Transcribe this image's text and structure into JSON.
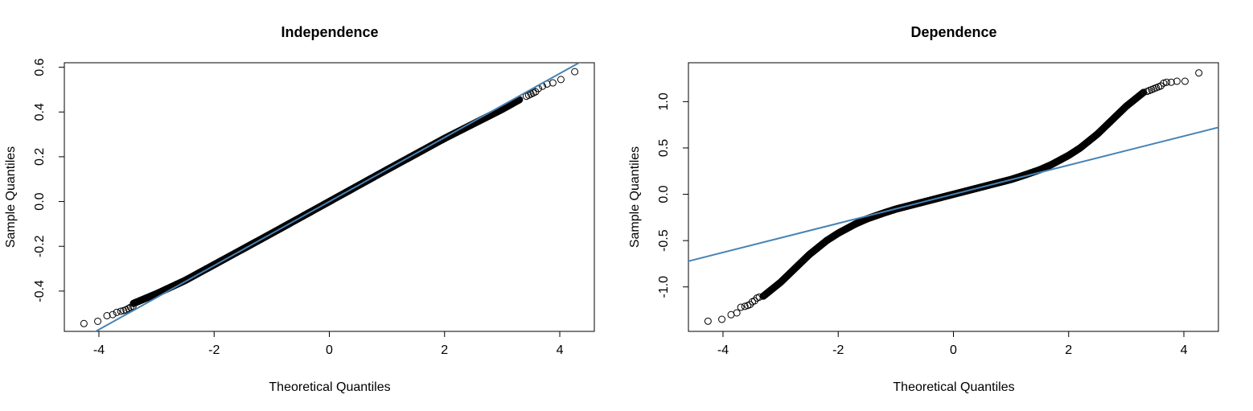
{
  "chart_data": [
    {
      "type": "scatter",
      "title": "Independence",
      "xlabel": "Theoretical Quantiles",
      "ylabel": "Sample Quantiles",
      "xlim": [
        -4.6,
        4.6
      ],
      "ylim": [
        -0.58,
        0.62
      ],
      "xticks": [
        -4,
        -2,
        0,
        2,
        4
      ],
      "yticks": [
        -0.4,
        -0.2,
        0.0,
        0.2,
        0.4,
        0.6
      ],
      "ytick_labels": [
        "-0.4",
        "-0.2",
        "0.0",
        "0.2",
        "0.4",
        "0.6"
      ],
      "grid": false,
      "point_color": "#000000",
      "line_color": "#4682B4",
      "reference_line": {
        "intercept": 0.0,
        "slope": 0.143
      },
      "quantile_curve": {
        "x": [
          -3.4,
          -3.0,
          -2.5,
          -2.0,
          -1.5,
          -1.0,
          -0.5,
          0.0,
          0.5,
          1.0,
          1.5,
          2.0,
          2.5,
          3.0,
          3.3
        ],
        "y": [
          -0.455,
          -0.412,
          -0.352,
          -0.282,
          -0.212,
          -0.142,
          -0.071,
          0.0,
          0.071,
          0.142,
          0.212,
          0.282,
          0.347,
          0.412,
          0.455
        ]
      },
      "tail_points": {
        "x": [
          -4.26,
          -4.02,
          -3.86,
          -3.76,
          -3.69,
          -3.62,
          -3.57,
          -3.53,
          -3.49,
          -3.45,
          -3.41,
          3.42,
          3.46,
          3.5,
          3.54,
          3.58,
          3.63,
          3.7,
          3.78,
          3.88,
          4.02,
          4.26
        ],
        "y": [
          -0.545,
          -0.535,
          -0.51,
          -0.505,
          -0.495,
          -0.49,
          -0.487,
          -0.484,
          -0.478,
          -0.472,
          -0.468,
          0.47,
          0.475,
          0.48,
          0.485,
          0.49,
          0.505,
          0.515,
          0.525,
          0.53,
          0.545,
          0.58
        ]
      }
    },
    {
      "type": "scatter",
      "title": "Dependence",
      "xlabel": "Theoretical Quantiles",
      "ylabel": "Sample Quantiles",
      "xlim": [
        -4.6,
        4.6
      ],
      "ylim": [
        -1.48,
        1.42
      ],
      "xticks": [
        -4,
        -2,
        0,
        2,
        4
      ],
      "yticks": [
        -1.0,
        -0.5,
        0.0,
        0.5,
        1.0
      ],
      "ytick_labels": [
        "-1.0",
        "-0.5",
        "0.0",
        "0.5",
        "1.0"
      ],
      "grid": false,
      "point_color": "#000000",
      "line_color": "#4682B4",
      "reference_line": {
        "intercept": 0.0,
        "slope": 0.157
      },
      "quantile_curve": {
        "x": [
          -3.3,
          -3.0,
          -2.8,
          -2.5,
          -2.2,
          -2.0,
          -1.7,
          -1.5,
          -1.2,
          -1.0,
          -0.5,
          0.0,
          0.5,
          1.0,
          1.2,
          1.5,
          1.7,
          2.0,
          2.2,
          2.5,
          2.8,
          3.0,
          3.3
        ],
        "y": [
          -1.1,
          -0.95,
          -0.83,
          -0.65,
          -0.5,
          -0.42,
          -0.32,
          -0.265,
          -0.2,
          -0.16,
          -0.08,
          0.0,
          0.08,
          0.16,
          0.2,
          0.265,
          0.32,
          0.42,
          0.5,
          0.65,
          0.83,
          0.95,
          1.1
        ]
      },
      "tail_points": {
        "x": [
          -4.26,
          -4.02,
          -3.86,
          -3.76,
          -3.69,
          -3.62,
          -3.57,
          -3.53,
          -3.49,
          -3.45,
          -3.41,
          -3.37,
          3.36,
          3.4,
          3.44,
          3.48,
          3.52,
          3.56,
          3.6,
          3.65,
          3.7,
          3.78,
          3.88,
          4.02,
          4.26
        ],
        "y": [
          -1.37,
          -1.35,
          -1.3,
          -1.28,
          -1.22,
          -1.21,
          -1.2,
          -1.19,
          -1.16,
          -1.15,
          -1.12,
          -1.11,
          1.11,
          1.12,
          1.13,
          1.14,
          1.15,
          1.16,
          1.17,
          1.2,
          1.21,
          1.21,
          1.22,
          1.22,
          1.31
        ]
      }
    }
  ]
}
